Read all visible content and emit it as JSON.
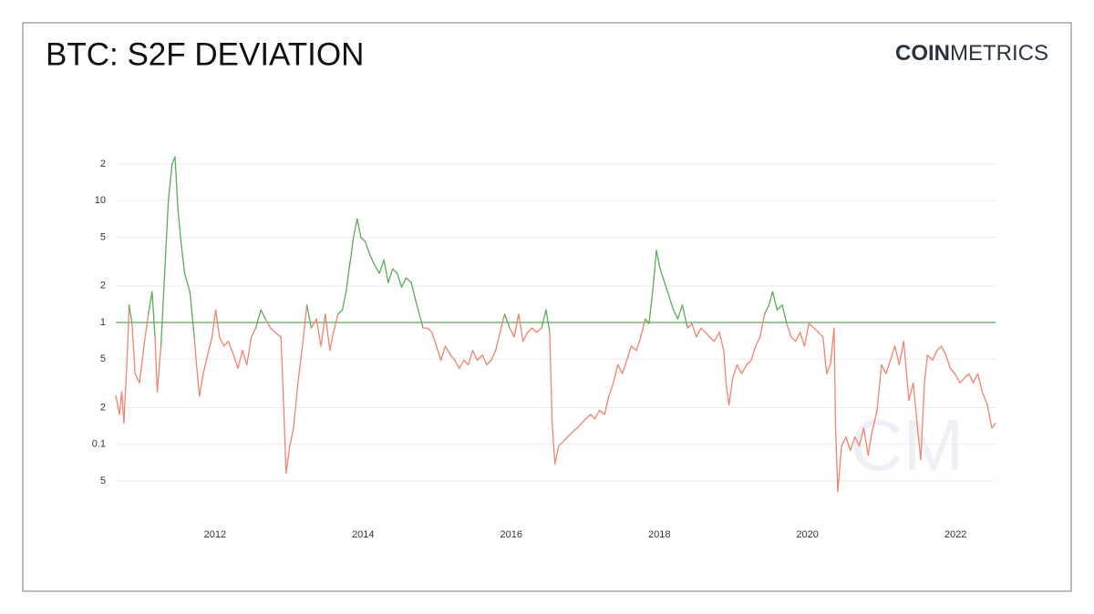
{
  "chart_data": {
    "type": "line",
    "title": "BTC: S2F DEVIATION",
    "logo": {
      "bold": "COIN",
      "light": "METRICS"
    },
    "watermark": "CM",
    "x": [
      2010.66,
      2010.71,
      2010.74,
      2010.77,
      2010.82,
      2010.84,
      2010.88,
      2010.92,
      2010.98,
      2011.04,
      2011.1,
      2011.15,
      2011.19,
      2011.22,
      2011.27,
      2011.32,
      2011.37,
      2011.42,
      2011.46,
      2011.5,
      2011.54,
      2011.59,
      2011.66,
      2011.72,
      2011.75,
      2011.79,
      2011.84,
      2011.9,
      2011.96,
      2012.01,
      2012.06,
      2012.12,
      2012.18,
      2012.25,
      2012.31,
      2012.37,
      2012.43,
      2012.49,
      2012.55,
      2012.62,
      2012.68,
      2012.75,
      2012.81,
      2012.89,
      2012.92,
      2012.96,
      2013.01,
      2013.06,
      2013.12,
      2013.18,
      2013.24,
      2013.3,
      2013.37,
      2013.43,
      2013.49,
      2013.55,
      2013.6,
      2013.66,
      2013.72,
      2013.77,
      2013.82,
      2013.87,
      2013.92,
      2013.97,
      2014.03,
      2014.09,
      2014.15,
      2014.22,
      2014.28,
      2014.34,
      2014.4,
      2014.46,
      2014.52,
      2014.58,
      2014.65,
      2014.71,
      2014.76,
      2014.81,
      2014.87,
      2014.93,
      2014.99,
      2015.05,
      2015.11,
      2015.18,
      2015.24,
      2015.3,
      2015.36,
      2015.42,
      2015.48,
      2015.54,
      2015.61,
      2015.67,
      2015.73,
      2015.79,
      2015.85,
      2015.91,
      2015.98,
      2016.04,
      2016.1,
      2016.16,
      2016.22,
      2016.28,
      2016.34,
      2016.41,
      2016.47,
      2016.52,
      2016.55,
      2016.59,
      2016.64,
      2016.7,
      2016.76,
      2016.82,
      2016.89,
      2016.95,
      2017.01,
      2017.07,
      2017.13,
      2017.19,
      2017.26,
      2017.32,
      2017.38,
      2017.44,
      2017.5,
      2017.56,
      2017.62,
      2017.69,
      2017.75,
      2017.81,
      2017.86,
      2017.91,
      2017.96,
      2018.01,
      2018.07,
      2018.13,
      2018.19,
      2018.25,
      2018.31,
      2018.38,
      2018.44,
      2018.5,
      2018.56,
      2018.62,
      2018.68,
      2018.74,
      2018.81,
      2018.87,
      2018.9,
      2018.94,
      2018.99,
      2019.05,
      2019.11,
      2019.18,
      2019.24,
      2019.3,
      2019.36,
      2019.42,
      2019.48,
      2019.53,
      2019.59,
      2019.66,
      2019.72,
      2019.78,
      2019.84,
      2019.9,
      2019.96,
      2020.02,
      2020.09,
      2020.15,
      2020.21,
      2020.26,
      2020.31,
      2020.36,
      2020.38,
      2020.41,
      2020.46,
      2020.52,
      2020.58,
      2020.64,
      2020.7,
      2020.76,
      2020.82,
      2020.87,
      2020.94,
      2021.0,
      2021.06,
      2021.12,
      2021.18,
      2021.24,
      2021.3,
      2021.37,
      2021.43,
      2021.48,
      2021.53,
      2021.58,
      2021.62,
      2021.69,
      2021.75,
      2021.81,
      2021.87,
      2021.93,
      2021.99,
      2022.06,
      2022.12,
      2022.18,
      2022.24,
      2022.3,
      2022.36,
      2022.43,
      2022.49,
      2022.54
    ],
    "series": [
      {
        "color_above": "#5aab5a",
        "color_below": "#f2836f",
        "values": [
          0.25,
          0.176,
          0.27,
          0.15,
          0.64,
          1.39,
          0.98,
          0.38,
          0.32,
          0.64,
          1.17,
          1.79,
          0.76,
          0.27,
          0.64,
          2.53,
          10,
          19.9,
          22.9,
          8.4,
          4.6,
          2.53,
          1.79,
          0.76,
          0.45,
          0.25,
          0.38,
          0.54,
          0.76,
          1.27,
          0.76,
          0.64,
          0.7,
          0.54,
          0.42,
          0.59,
          0.45,
          0.76,
          0.9,
          1.27,
          1.07,
          0.9,
          0.83,
          0.76,
          0.27,
          0.058,
          0.097,
          0.136,
          0.32,
          0.64,
          1.39,
          0.9,
          1.07,
          0.64,
          1.17,
          0.59,
          0.83,
          1.17,
          1.27,
          1.79,
          3.0,
          5.0,
          7.1,
          5.0,
          4.6,
          3.6,
          3.0,
          2.53,
          3.27,
          2.13,
          2.76,
          2.53,
          1.95,
          2.32,
          2.13,
          1.51,
          1.17,
          0.9,
          0.9,
          0.83,
          0.64,
          0.49,
          0.64,
          0.54,
          0.49,
          0.42,
          0.49,
          0.45,
          0.59,
          0.49,
          0.54,
          0.45,
          0.49,
          0.59,
          0.83,
          1.17,
          0.9,
          0.76,
          1.17,
          0.7,
          0.83,
          0.9,
          0.83,
          0.9,
          1.27,
          0.83,
          0.16,
          0.069,
          0.097,
          0.105,
          0.115,
          0.125,
          0.136,
          0.149,
          0.162,
          0.176,
          0.162,
          0.19,
          0.176,
          0.25,
          0.32,
          0.45,
          0.38,
          0.49,
          0.64,
          0.59,
          0.76,
          1.07,
          0.98,
          1.79,
          3.9,
          2.76,
          2.13,
          1.65,
          1.27,
          1.07,
          1.39,
          0.9,
          0.98,
          0.76,
          0.9,
          0.83,
          0.76,
          0.7,
          0.83,
          0.59,
          0.32,
          0.21,
          0.35,
          0.45,
          0.38,
          0.45,
          0.49,
          0.64,
          0.76,
          1.17,
          1.39,
          1.79,
          1.27,
          1.39,
          0.98,
          0.76,
          0.7,
          0.83,
          0.64,
          0.98,
          0.9,
          0.83,
          0.76,
          0.38,
          0.45,
          0.9,
          0.136,
          0.041,
          0.097,
          0.115,
          0.089,
          0.115,
          0.097,
          0.136,
          0.081,
          0.125,
          0.19,
          0.45,
          0.38,
          0.49,
          0.64,
          0.45,
          0.7,
          0.23,
          0.32,
          0.149,
          0.075,
          0.32,
          0.54,
          0.49,
          0.59,
          0.64,
          0.54,
          0.42,
          0.38,
          0.32,
          0.35,
          0.38,
          0.32,
          0.38,
          0.27,
          0.21,
          0.136,
          0.149
        ]
      }
    ],
    "threshold": 1,
    "xlim": [
      2010.66,
      2022.54
    ],
    "xticks": [
      2012,
      2014,
      2016,
      2018,
      2020,
      2022
    ],
    "ylim": [
      0.04,
      25
    ],
    "log_y": true,
    "yticks": [
      {
        "value": 20,
        "label": "2"
      },
      10,
      5,
      2,
      1,
      {
        "value": 0.5,
        "label": "5"
      },
      {
        "value": 0.2,
        "label": "2"
      },
      0.1,
      {
        "value": 0.05,
        "label": "5"
      }
    ],
    "grid": true
  }
}
